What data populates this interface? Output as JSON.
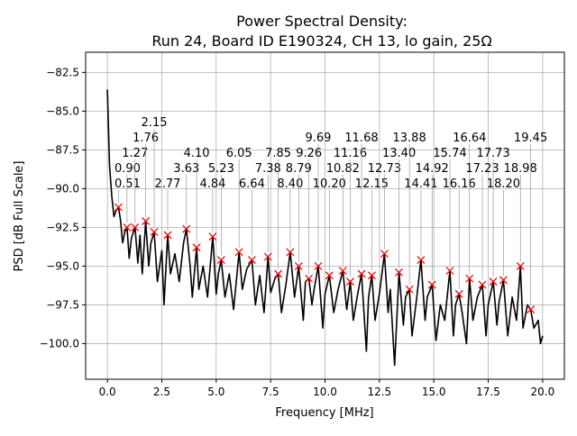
{
  "chart_data": {
    "type": "line",
    "title_line1": "Power Spectral Density:",
    "title_line2": "Run 24, Board ID E190324, CH 13, lo gain, 25Ω",
    "xlabel": "Frequency [MHz]",
    "ylabel": "PSD [dB Full Scale]",
    "xlim": [
      -1.0,
      21.0
    ],
    "ylim": [
      -102.3,
      -81.2
    ],
    "xticks": [
      0.0,
      2.5,
      5.0,
      7.5,
      10.0,
      12.5,
      15.0,
      17.5,
      20.0
    ],
    "xtick_labels": [
      "0.0",
      "2.5",
      "5.0",
      "7.5",
      "10.0",
      "12.5",
      "15.0",
      "17.5",
      "20.0"
    ],
    "yticks": [
      -82.5,
      -85.0,
      -87.5,
      -90.0,
      -92.5,
      -95.0,
      -97.5,
      -100.0
    ],
    "ytick_labels": [
      "−82.5",
      "−85.0",
      "−87.5",
      "−90.0",
      "−92.5",
      "−95.0",
      "−97.5",
      "−100.0"
    ],
    "grid": true,
    "line_color": "#000000",
    "marker_color": "#ff0000",
    "series": [
      {
        "name": "PSD",
        "x": [
          0.0,
          0.1,
          0.2,
          0.3,
          0.4,
          0.51,
          0.6,
          0.7,
          0.8,
          0.9,
          1.0,
          1.1,
          1.27,
          1.4,
          1.5,
          1.6,
          1.76,
          1.9,
          2.0,
          2.15,
          2.3,
          2.5,
          2.6,
          2.77,
          2.9,
          3.1,
          3.3,
          3.5,
          3.63,
          3.8,
          3.9,
          4.1,
          4.2,
          4.4,
          4.6,
          4.84,
          5.0,
          5.1,
          5.23,
          5.4,
          5.6,
          5.8,
          6.05,
          6.2,
          6.4,
          6.64,
          6.8,
          7.0,
          7.2,
          7.38,
          7.5,
          7.7,
          7.85,
          8.0,
          8.2,
          8.4,
          8.6,
          8.79,
          9.0,
          9.1,
          9.26,
          9.4,
          9.5,
          9.69,
          9.9,
          10.0,
          10.2,
          10.4,
          10.6,
          10.82,
          11.0,
          11.16,
          11.3,
          11.5,
          11.68,
          11.9,
          12.0,
          12.15,
          12.3,
          12.5,
          12.73,
          12.9,
          13.0,
          13.2,
          13.4,
          13.6,
          13.7,
          13.88,
          14.0,
          14.2,
          14.41,
          14.6,
          14.7,
          14.92,
          15.1,
          15.3,
          15.5,
          15.74,
          15.9,
          16.0,
          16.16,
          16.3,
          16.5,
          16.64,
          16.8,
          17.0,
          17.23,
          17.4,
          17.5,
          17.73,
          17.9,
          18.0,
          18.2,
          18.4,
          18.6,
          18.8,
          18.98,
          19.1,
          19.3,
          19.45,
          19.6,
          19.8,
          19.9,
          20.0
        ],
        "y": [
          -83.6,
          -88.5,
          -90.5,
          -91.8,
          -91.4,
          -91.2,
          -92.0,
          -93.5,
          -92.8,
          -92.5,
          -94.5,
          -93.2,
          -92.5,
          -94.8,
          -93.0,
          -95.5,
          -92.1,
          -95.0,
          -93.5,
          -92.8,
          -96.0,
          -94.0,
          -97.5,
          -93.0,
          -95.5,
          -94.2,
          -96.0,
          -93.5,
          -92.6,
          -95.0,
          -97.0,
          -93.8,
          -96.5,
          -95.0,
          -97.0,
          -93.1,
          -96.8,
          -95.5,
          -94.6,
          -97.0,
          -95.5,
          -97.8,
          -94.1,
          -96.5,
          -95.2,
          -94.6,
          -97.5,
          -95.6,
          -98.0,
          -94.4,
          -96.7,
          -95.8,
          -95.5,
          -98.0,
          -96.2,
          -94.1,
          -97.0,
          -95.0,
          -98.5,
          -96.0,
          -95.8,
          -97.5,
          -96.5,
          -95.0,
          -99.0,
          -96.8,
          -95.6,
          -98.0,
          -96.5,
          -95.3,
          -97.8,
          -96.0,
          -98.5,
          -96.8,
          -95.5,
          -100.5,
          -97.0,
          -95.6,
          -98.5,
          -96.8,
          -94.2,
          -98.0,
          -96.5,
          -101.4,
          -95.4,
          -98.8,
          -97.0,
          -96.5,
          -99.5,
          -97.2,
          -94.6,
          -98.5,
          -97.0,
          -96.2,
          -99.8,
          -97.5,
          -98.5,
          -95.3,
          -99.5,
          -97.5,
          -96.8,
          -98.0,
          -100.0,
          -95.8,
          -98.5,
          -97.0,
          -96.2,
          -99.5,
          -97.5,
          -96.0,
          -98.8,
          -97.3,
          -95.9,
          -99.5,
          -97.0,
          -98.5,
          -95.0,
          -99.0,
          -97.5,
          -97.8,
          -99.0,
          -98.5,
          -100.0,
          -99.5
        ]
      },
      {
        "name": "Peaks",
        "marker": "x",
        "x": [
          0.51,
          0.9,
          1.27,
          1.76,
          2.15,
          2.77,
          3.63,
          4.1,
          4.84,
          5.23,
          6.05,
          6.64,
          7.38,
          7.85,
          8.4,
          8.79,
          9.26,
          9.69,
          10.2,
          10.82,
          11.16,
          11.68,
          12.15,
          12.73,
          13.4,
          13.88,
          14.41,
          14.92,
          15.74,
          16.16,
          16.64,
          17.23,
          17.73,
          18.2,
          18.98,
          19.45
        ],
        "y": [
          -91.2,
          -92.5,
          -92.5,
          -92.1,
          -92.8,
          -93.0,
          -92.6,
          -93.8,
          -93.1,
          -94.6,
          -94.1,
          -94.6,
          -94.4,
          -95.5,
          -94.1,
          -95.0,
          -95.8,
          -95.0,
          -95.6,
          -95.3,
          -96.0,
          -95.5,
          -95.6,
          -94.2,
          -95.4,
          -96.5,
          -94.6,
          -96.2,
          -95.3,
          -96.8,
          -95.8,
          -96.2,
          -96.0,
          -95.9,
          -95.0,
          -97.8
        ],
        "labels": [
          "0.51",
          "0.90",
          "1.27",
          "1.76",
          "2.15",
          "2.77",
          "3.63",
          "4.10",
          "4.84",
          "5.23",
          "6.05",
          "6.64",
          "7.38",
          "7.85",
          "8.40",
          "8.79",
          "9.26",
          "9.69",
          "10.20",
          "10.82",
          "11.16",
          "11.68",
          "12.15",
          "12.73",
          "13.40",
          "13.88",
          "14.41",
          "14.92",
          "15.74",
          "16.16",
          "16.64",
          "17.23",
          "17.73",
          "18.20",
          "18.98",
          "19.45"
        ]
      }
    ]
  }
}
